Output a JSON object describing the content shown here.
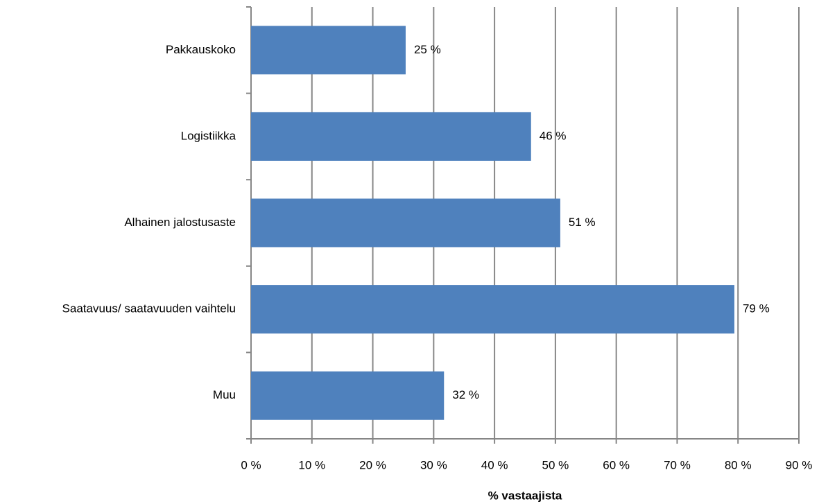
{
  "chart_data": {
    "type": "bar",
    "orientation": "horizontal",
    "x_label": "% vastaajista",
    "categories": [
      "Pakkauskoko",
      "Logistiikka",
      "Alhainen jalostusaste",
      "Saatavuus/ saatavuuden vaihtelu",
      "Muu"
    ],
    "values": [
      25.4,
      46,
      50.8,
      79.4,
      31.7
    ],
    "value_labels": [
      "25 %",
      "46 %",
      "51 %",
      "79 %",
      "32 %"
    ],
    "color": "#4f81bd",
    "xlim": [
      0,
      90
    ],
    "xticks": [
      {
        "value": 0,
        "label": "0 %"
      },
      {
        "value": 10,
        "label": "10 %"
      },
      {
        "value": 20,
        "label": "20 %"
      },
      {
        "value": 30,
        "label": "30 %"
      },
      {
        "value": 40,
        "label": "40 %"
      },
      {
        "value": 50,
        "label": "50 %"
      },
      {
        "value": 60,
        "label": "60 %"
      },
      {
        "value": 70,
        "label": "70 %"
      },
      {
        "value": 80,
        "label": "80 %"
      },
      {
        "value": 90,
        "label": "90 %"
      }
    ],
    "grid": true
  }
}
